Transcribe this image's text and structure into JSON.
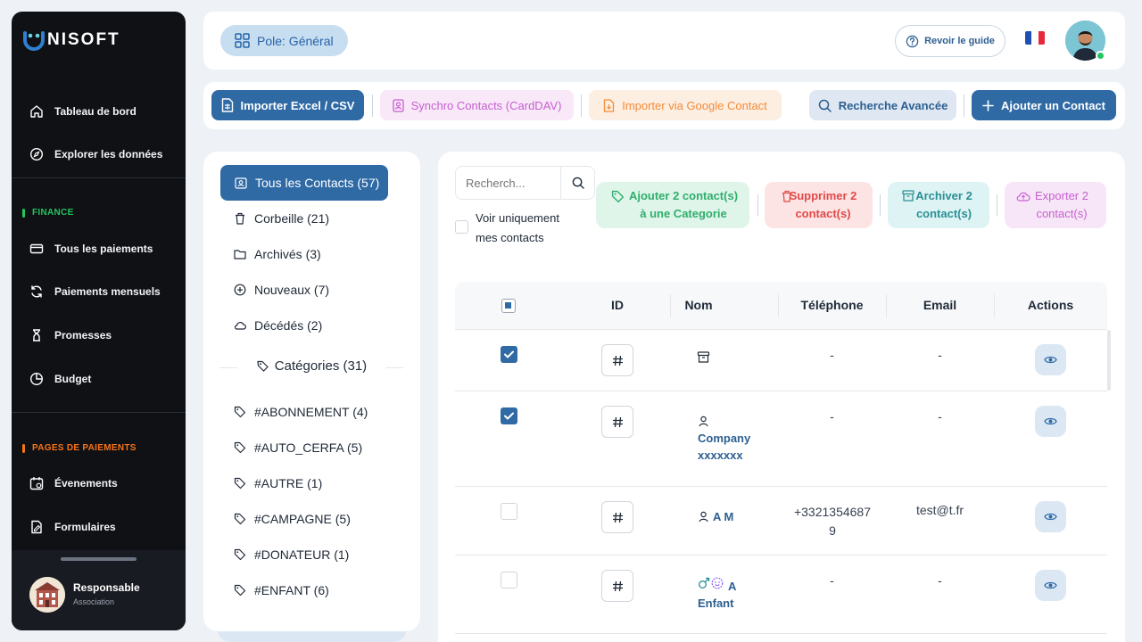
{
  "brand": {
    "logo_text": "NISOFT",
    "logo_letter": "U"
  },
  "sidebar": {
    "items_top": [
      {
        "label": "Tableau de bord",
        "icon": "home-icon"
      },
      {
        "label": "Explorer les données",
        "icon": "compass-icon"
      }
    ],
    "finance_section": "FINANCE",
    "finance_items": [
      {
        "label": "Tous les paiements",
        "icon": "card-icon"
      },
      {
        "label": "Paiements mensuels",
        "icon": "refresh-icon"
      },
      {
        "label": "Promesses",
        "icon": "hourglass-icon"
      },
      {
        "label": "Budget",
        "icon": "pie-icon"
      }
    ],
    "payment_pages_section": "PAGES DE PAIEMENTS",
    "payment_items": [
      {
        "label": "Évenements",
        "icon": "calendar-icon"
      },
      {
        "label": "Formulaires",
        "icon": "form-icon"
      }
    ],
    "user": {
      "name": "Responsable",
      "role": "Association"
    }
  },
  "topbar": {
    "pole_label": "Pole: Général",
    "guide_label": "Revoir le guide",
    "language": "fr"
  },
  "actionbar": {
    "import_excel": "Importer Excel / CSV",
    "sync_contacts": "Synchro Contacts (CardDAV)",
    "import_google": "Importer via Google Contact",
    "advanced_search": "Recherche Avancée",
    "add_contact": "Ajouter un Contact"
  },
  "filters": {
    "active": "Tous les Contacts (57)",
    "items": [
      {
        "label": "Corbeille (21)",
        "icon": "trash-icon"
      },
      {
        "label": "Archivés (3)",
        "icon": "folder-icon"
      },
      {
        "label": "Nouveaux (7)",
        "icon": "plus-circle-icon"
      },
      {
        "label": "Décédés (2)",
        "icon": "cloud-icon"
      }
    ],
    "categories_title": "Catégories (31)",
    "categories": [
      "#ABONNEMENT (4)",
      "#AUTO_CERFA (5)",
      "#AUTRE (1)",
      "#CAMPAGNE (5)",
      "#DONATEUR (1)",
      "#ENFANT (6)"
    ]
  },
  "main": {
    "search_placeholder": "Recherch...",
    "only_mine_label": "Voir uniquement mes contacts",
    "bulk": {
      "add_category": "Ajouter 2 contact(s) à une Categorie",
      "delete": "Supprimer 2 contact(s)",
      "archive": "Archiver 2 contact(s)",
      "export": "Exporter 2 contact(s)"
    },
    "table": {
      "headers": {
        "id": "ID",
        "name": "Nom",
        "phone": "Téléphone",
        "email": "Email",
        "actions": "Actions"
      },
      "rows": [
        {
          "checked": true,
          "name": "",
          "name_icon": "archive-box-icon",
          "phone": "-",
          "email": "-"
        },
        {
          "checked": true,
          "name": "Company xxxxxxx",
          "name_icon": "person-icon",
          "phone": "-",
          "email": "-"
        },
        {
          "checked": false,
          "name": "A M",
          "name_icon": "person-icon",
          "phone": "+33213546879",
          "email": "test@t.fr"
        },
        {
          "checked": false,
          "name": "A Enfant",
          "name_icon": "gender-icons",
          "phone": "-",
          "email": "-"
        }
      ]
    }
  },
  "colors": {
    "primary": "#2f6aa5",
    "sidebar_bg": "#0f1115",
    "finance_accent": "#22c55e",
    "payments_accent": "#f97316",
    "delete_bg": "#fde4e4",
    "delete_fg": "#e14949",
    "category_bg": "#dff5ea",
    "category_fg": "#2fae6c",
    "archive_bg": "#def3f3",
    "archive_fg": "#2b8f95",
    "export_bg": "#f7e6f7",
    "export_fg": "#c75fd1"
  }
}
